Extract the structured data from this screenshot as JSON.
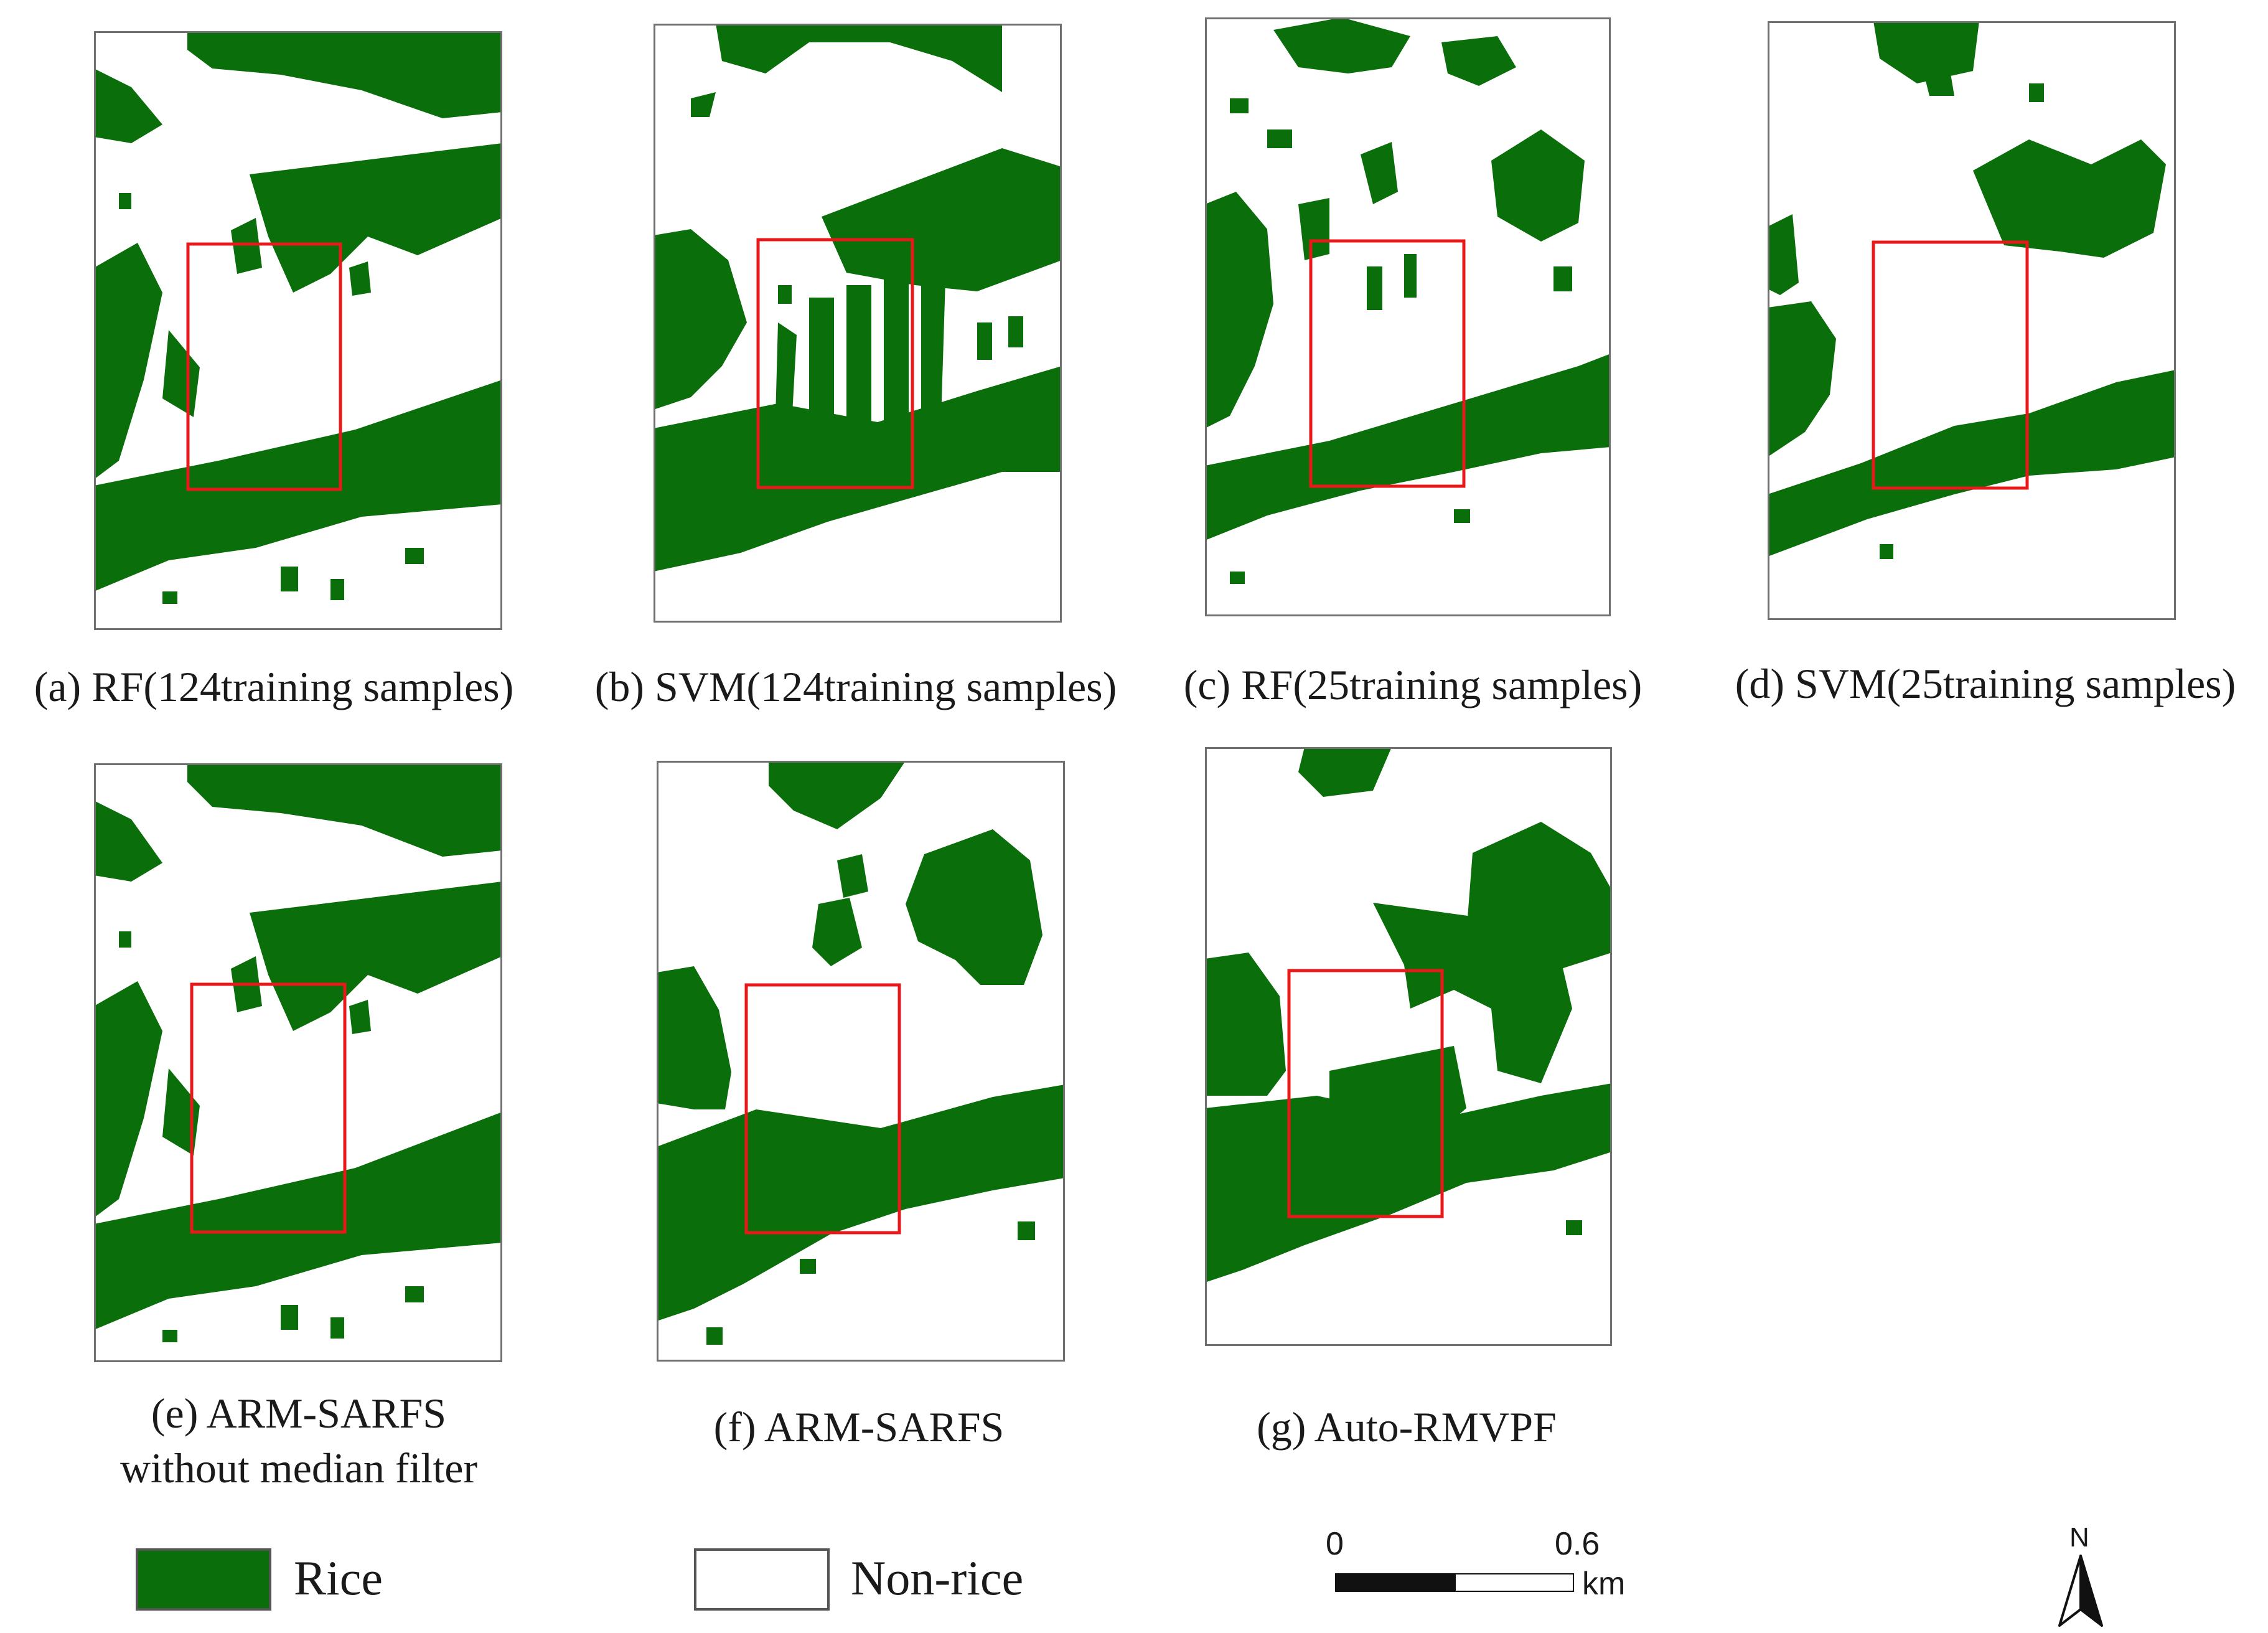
{
  "colors": {
    "rice": "#0a6e0a",
    "non_rice": "#ffffff",
    "highlight_box": "#e8191b",
    "frame": "#707070"
  },
  "panels": [
    {
      "id": "a",
      "caption": "(a) RF(124training samples)"
    },
    {
      "id": "b",
      "caption": "(b) SVM(124training samples)"
    },
    {
      "id": "c",
      "caption": "(c) RF(25training samples)"
    },
    {
      "id": "d",
      "caption": "(d) SVM(25training samples)"
    },
    {
      "id": "e",
      "caption_line1": "(e) ARM-SARFS",
      "caption_line2": "without median filter"
    },
    {
      "id": "f",
      "caption": "(f) ARM-SARFS"
    },
    {
      "id": "g",
      "caption": "(g) Auto-RMVPF"
    }
  ],
  "legend": {
    "rice_label": "Rice",
    "non_rice_label": "Non-rice"
  },
  "scale_bar": {
    "start_label": "0",
    "end_label": "0.6",
    "unit": "km"
  },
  "north_arrow": {
    "label": "N"
  }
}
